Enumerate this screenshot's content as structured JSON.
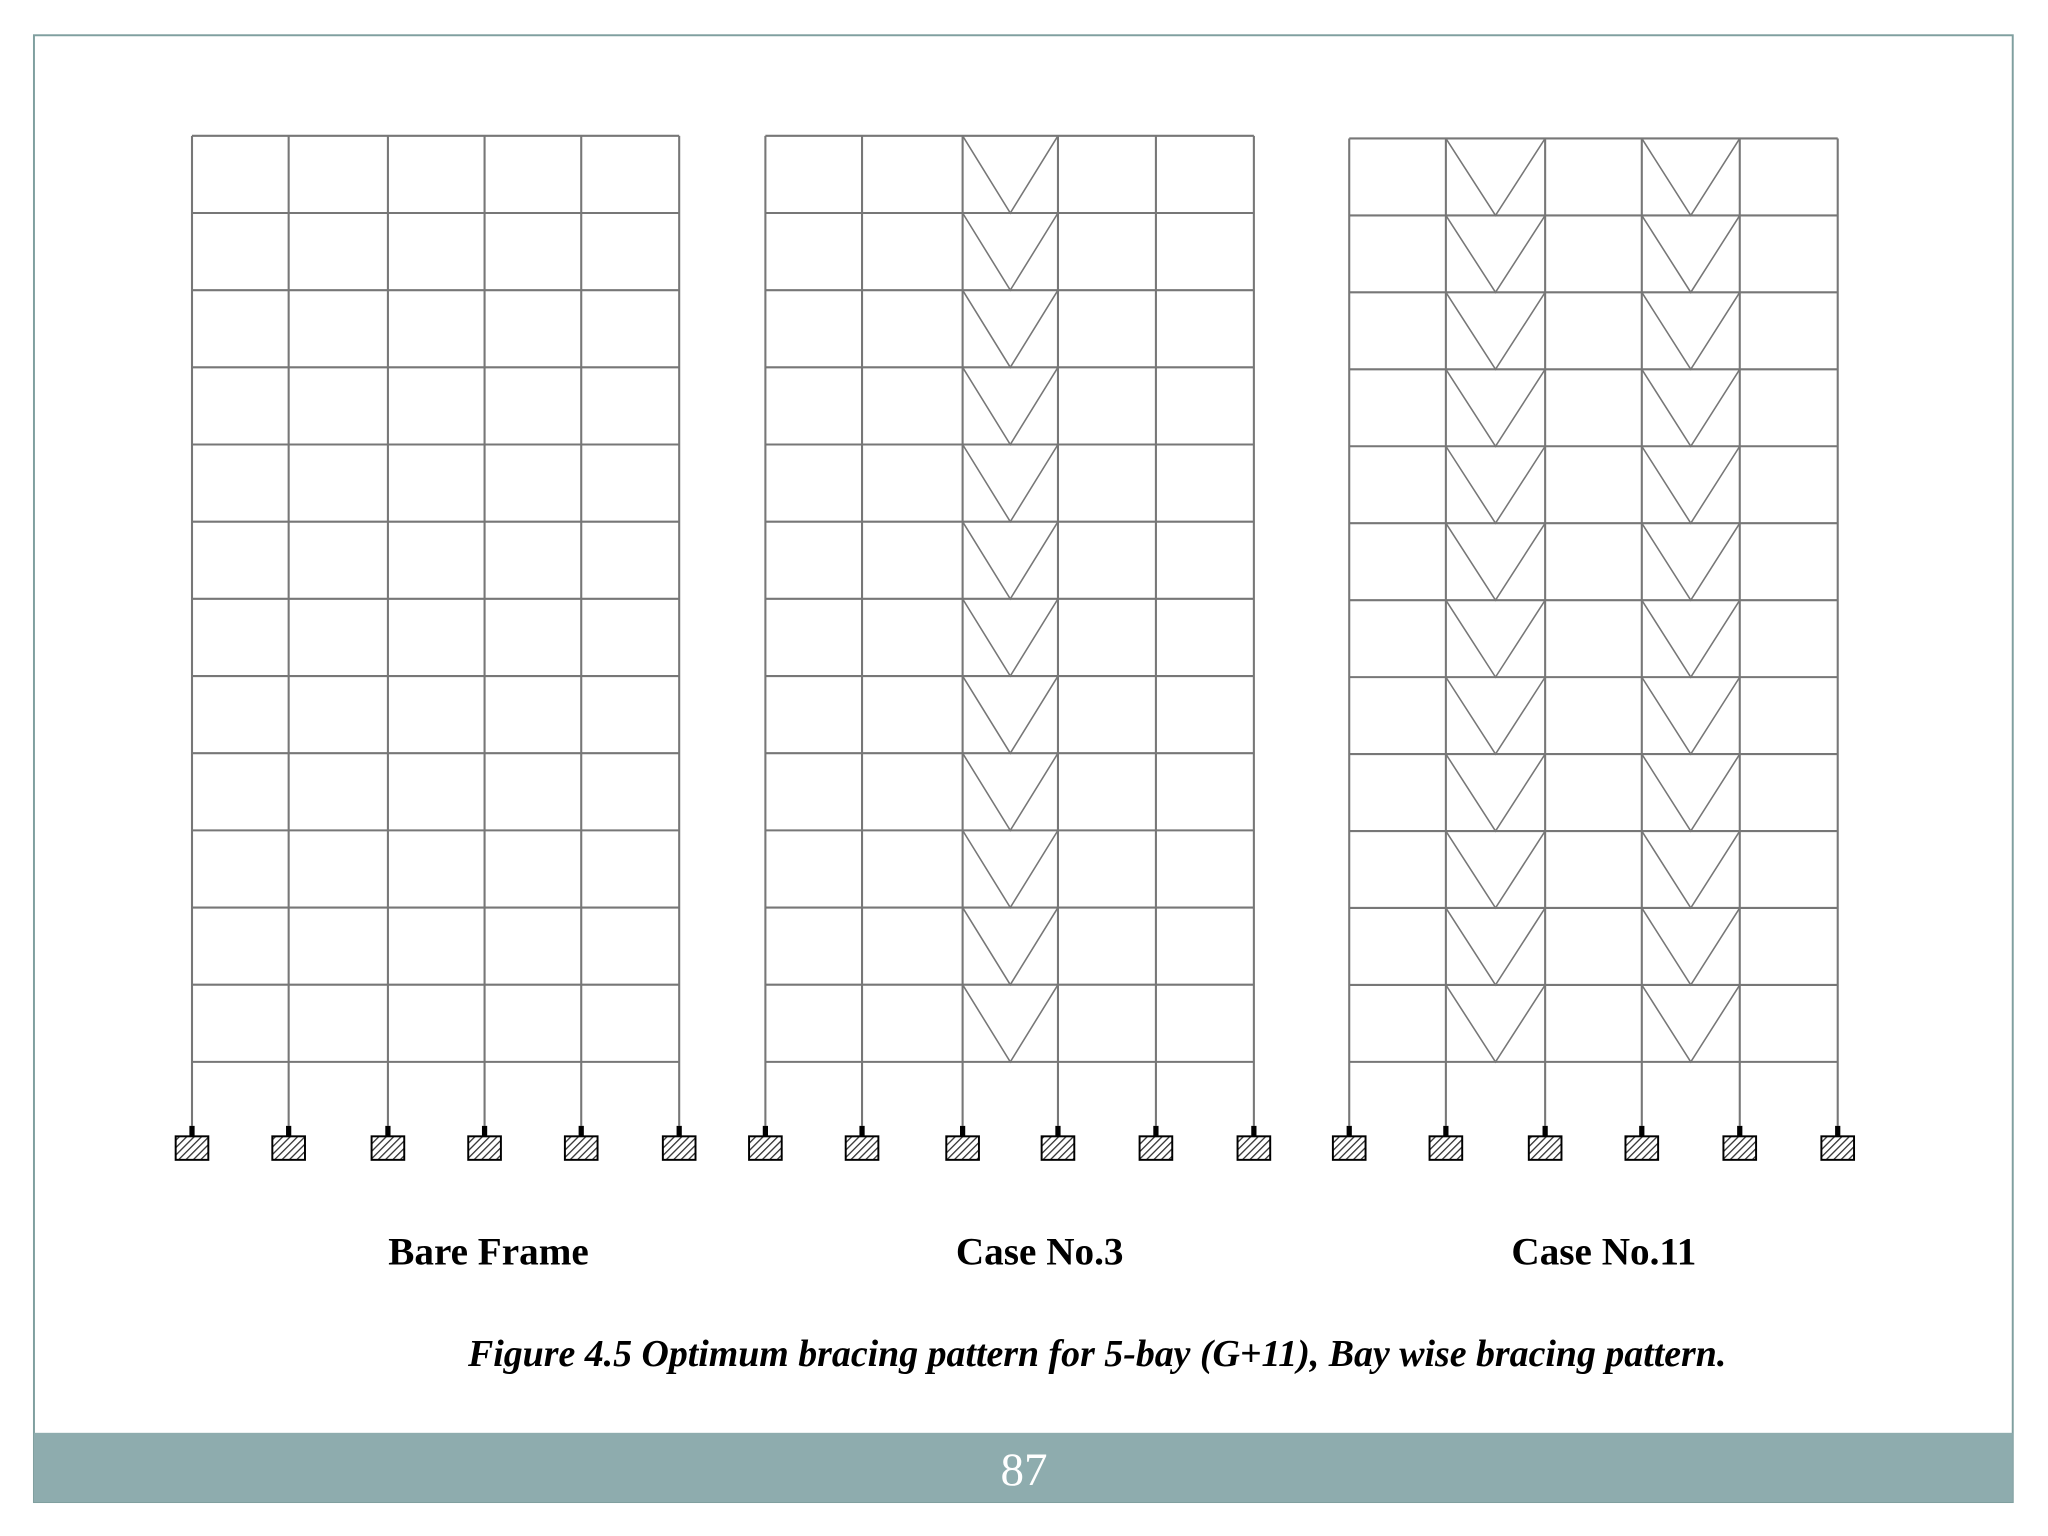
{
  "frames": [
    {
      "label": "Bare Frame"
    },
    {
      "label": "Case No.3"
    },
    {
      "label": "Case No.11"
    }
  ],
  "caption": "Figure 4.5 Optimum bracing pattern for 5-bay (G+11), Bay wise bracing pattern.",
  "page_number": "87"
}
